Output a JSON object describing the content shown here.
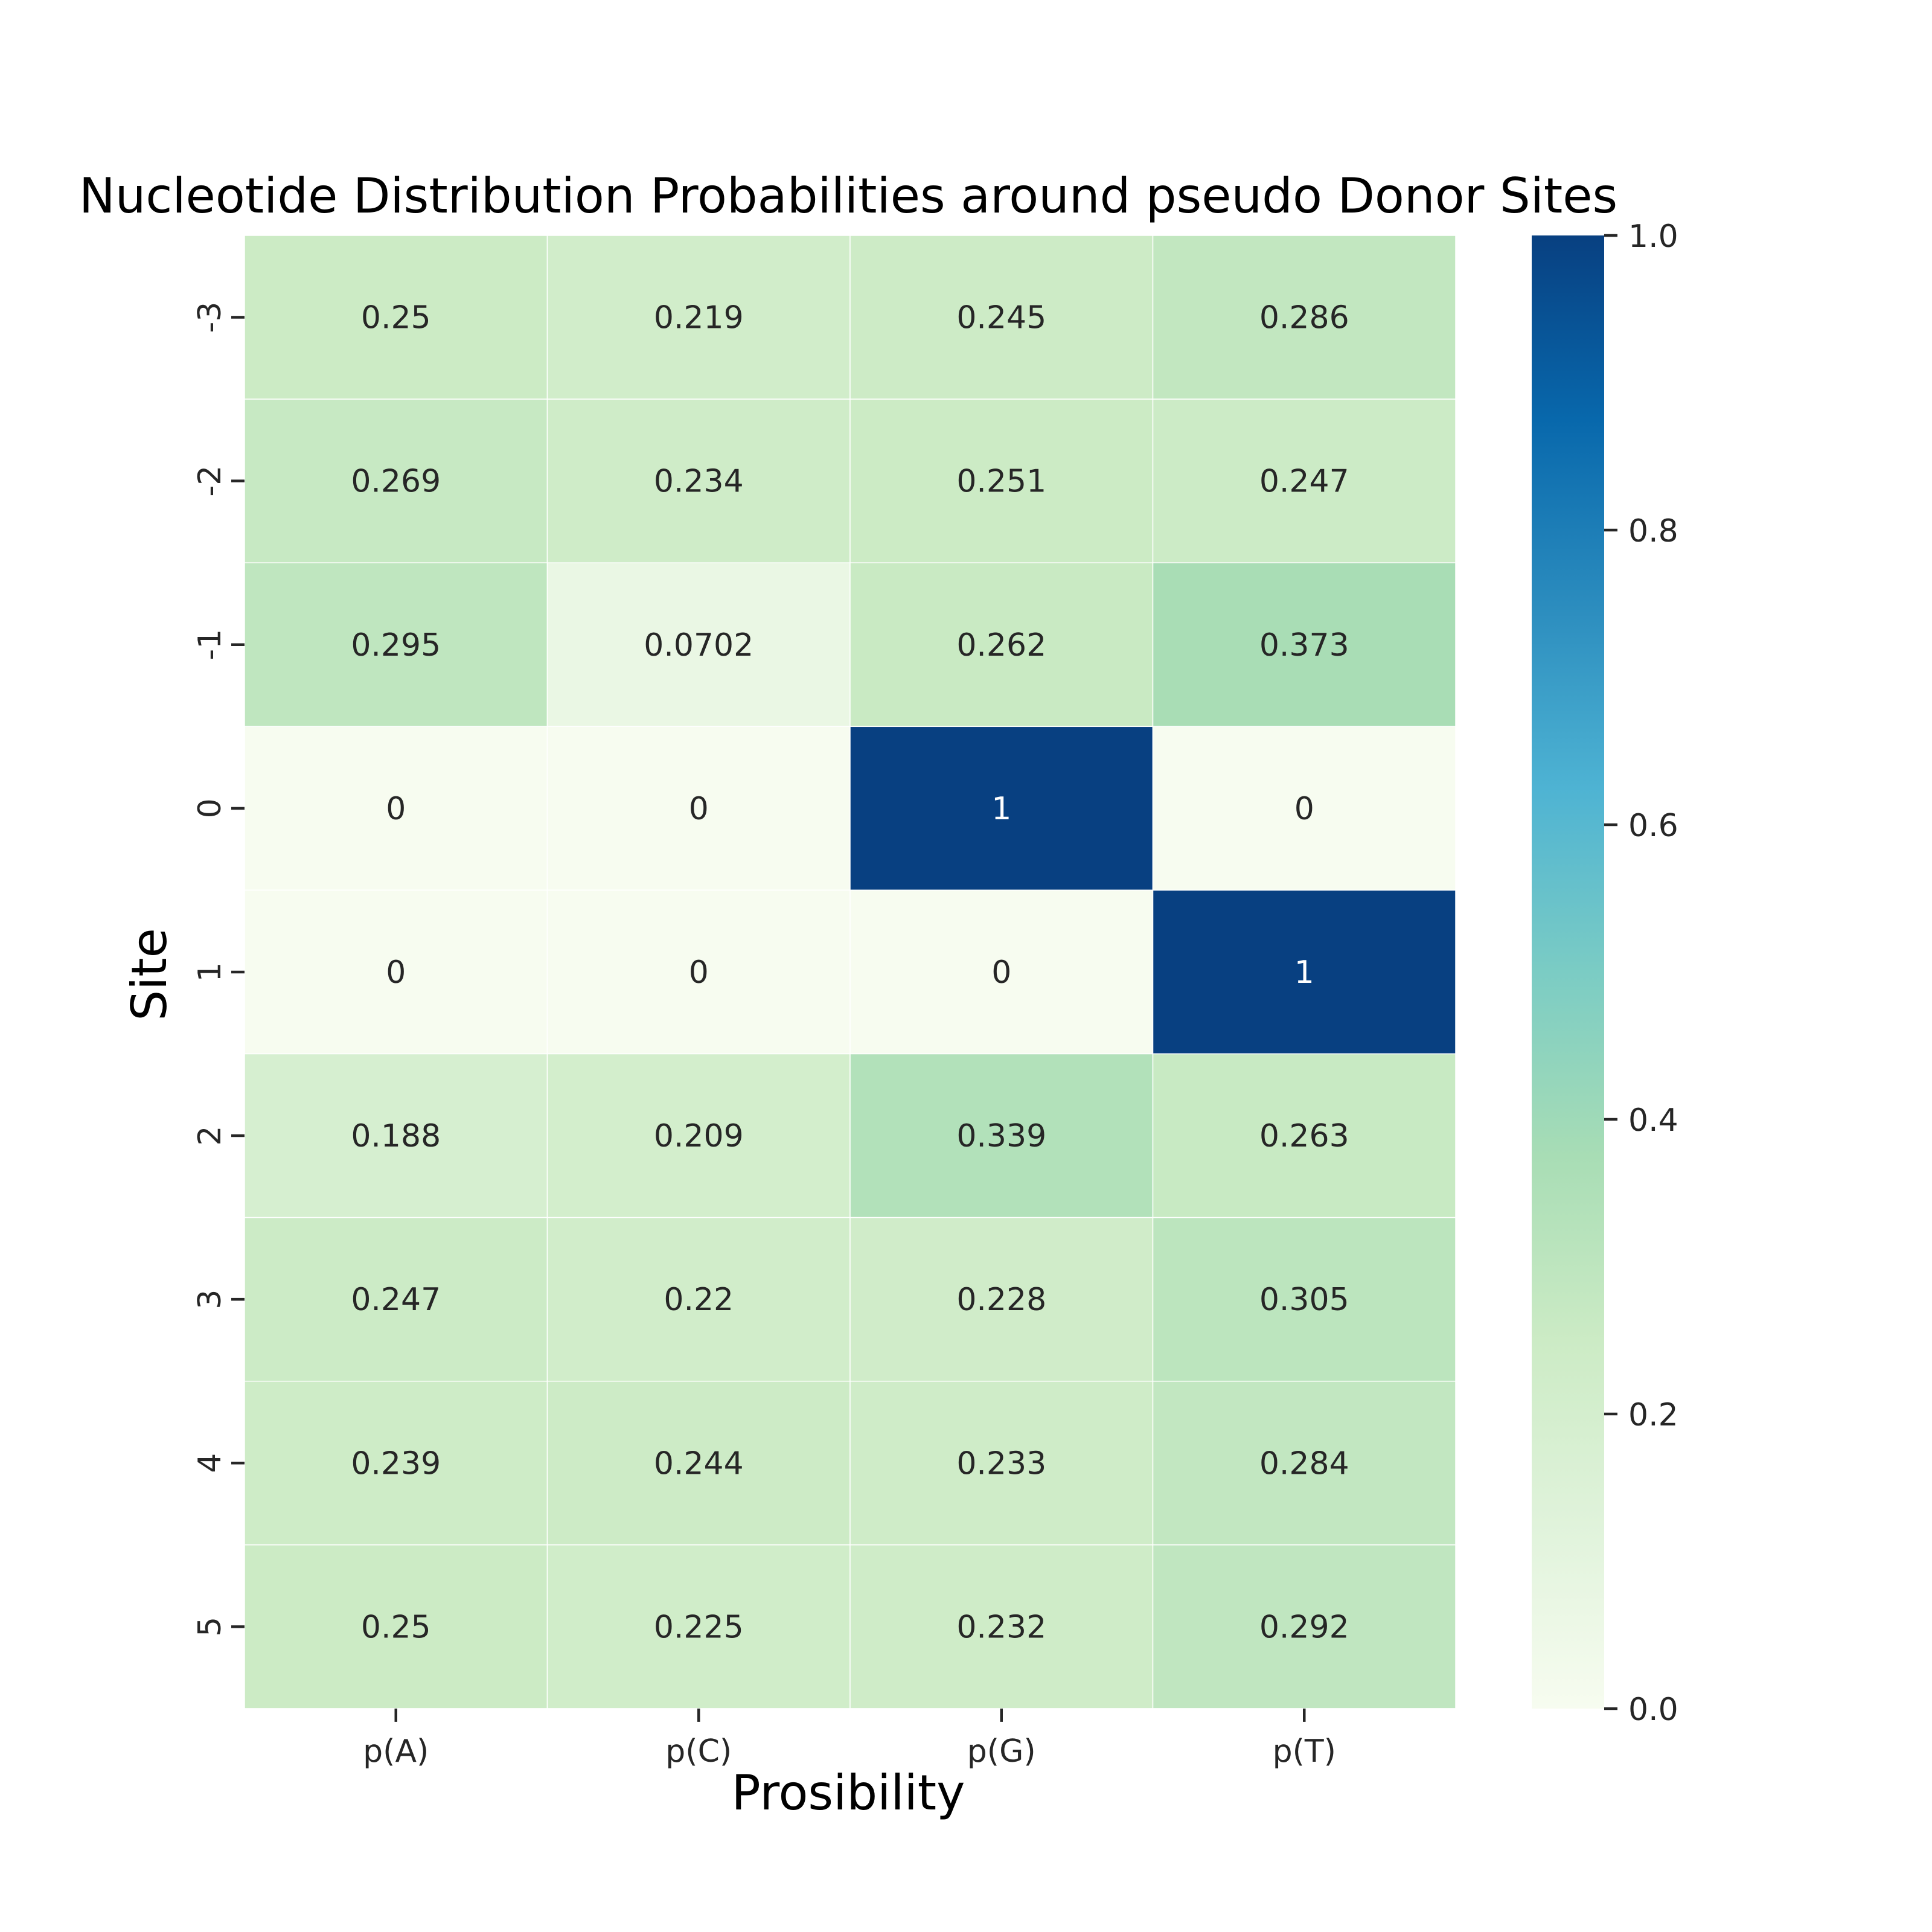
{
  "chart_data": {
    "type": "heatmap",
    "title": "Nucleotide Distribution Probabilities around pseudo Donor Sites",
    "xlabel": "Prosibility",
    "ylabel": "Site",
    "x_categories": [
      "p(A)",
      "p(C)",
      "p(G)",
      "p(T)"
    ],
    "y_categories": [
      "-3",
      "-2",
      "-1",
      "0",
      "1",
      "2",
      "3",
      "4",
      "5"
    ],
    "values": [
      [
        0.25,
        0.219,
        0.245,
        0.286
      ],
      [
        0.269,
        0.234,
        0.251,
        0.247
      ],
      [
        0.295,
        0.0702,
        0.262,
        0.373
      ],
      [
        0,
        0,
        1,
        0
      ],
      [
        0,
        0,
        0,
        1
      ],
      [
        0.188,
        0.209,
        0.339,
        0.263
      ],
      [
        0.247,
        0.22,
        0.228,
        0.305
      ],
      [
        0.239,
        0.244,
        0.233,
        0.284
      ],
      [
        0.25,
        0.225,
        0.232,
        0.292
      ]
    ],
    "cell_labels": [
      [
        "0.25",
        "0.219",
        "0.245",
        "0.286"
      ],
      [
        "0.269",
        "0.234",
        "0.251",
        "0.247"
      ],
      [
        "0.295",
        "0.0702",
        "0.262",
        "0.373"
      ],
      [
        "0",
        "0",
        "1",
        "0"
      ],
      [
        "0",
        "0",
        "0",
        "1"
      ],
      [
        "0.188",
        "0.209",
        "0.339",
        "0.263"
      ],
      [
        "0.247",
        "0.22",
        "0.228",
        "0.305"
      ],
      [
        "0.239",
        "0.244",
        "0.233",
        "0.284"
      ],
      [
        "0.25",
        "0.225",
        "0.232",
        "0.292"
      ]
    ],
    "colormap": "GnBu",
    "vmin": 0,
    "vmax": 1,
    "colorbar_ticks": [
      "0.0",
      "0.2",
      "0.4",
      "0.6",
      "0.8",
      "1.0"
    ],
    "colorbar_tick_values": [
      0,
      0.2,
      0.4,
      0.6,
      0.8,
      1.0
    ],
    "colormap_stops": [
      "#f7fcf0",
      "#e0f3db",
      "#ccebc5",
      "#a8ddb5",
      "#7bccc4",
      "#4eb3d3",
      "#2b8cbe",
      "#0868ac",
      "#084081"
    ],
    "grid_line_color": "#ffffff",
    "grid": false
  }
}
